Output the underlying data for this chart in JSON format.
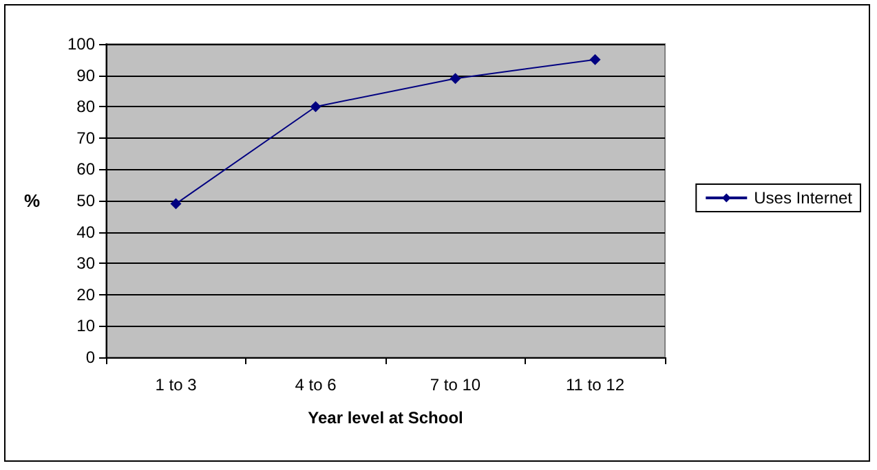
{
  "chart_data": {
    "type": "line",
    "xlabel": "Year level at School",
    "ylabel": "%",
    "categories": [
      "1 to 3",
      "4 to 6",
      "7 to 10",
      "11 to 12"
    ],
    "series": [
      {
        "name": "Uses Internet",
        "color": "#000080",
        "values": [
          49,
          80,
          89,
          95
        ]
      }
    ],
    "ylim": [
      0,
      100
    ],
    "yticks": [
      0,
      10,
      20,
      30,
      40,
      50,
      60,
      70,
      80,
      90,
      100
    ],
    "grid": "y",
    "legend": "right",
    "marker": "diamond",
    "line_style": "solid"
  }
}
